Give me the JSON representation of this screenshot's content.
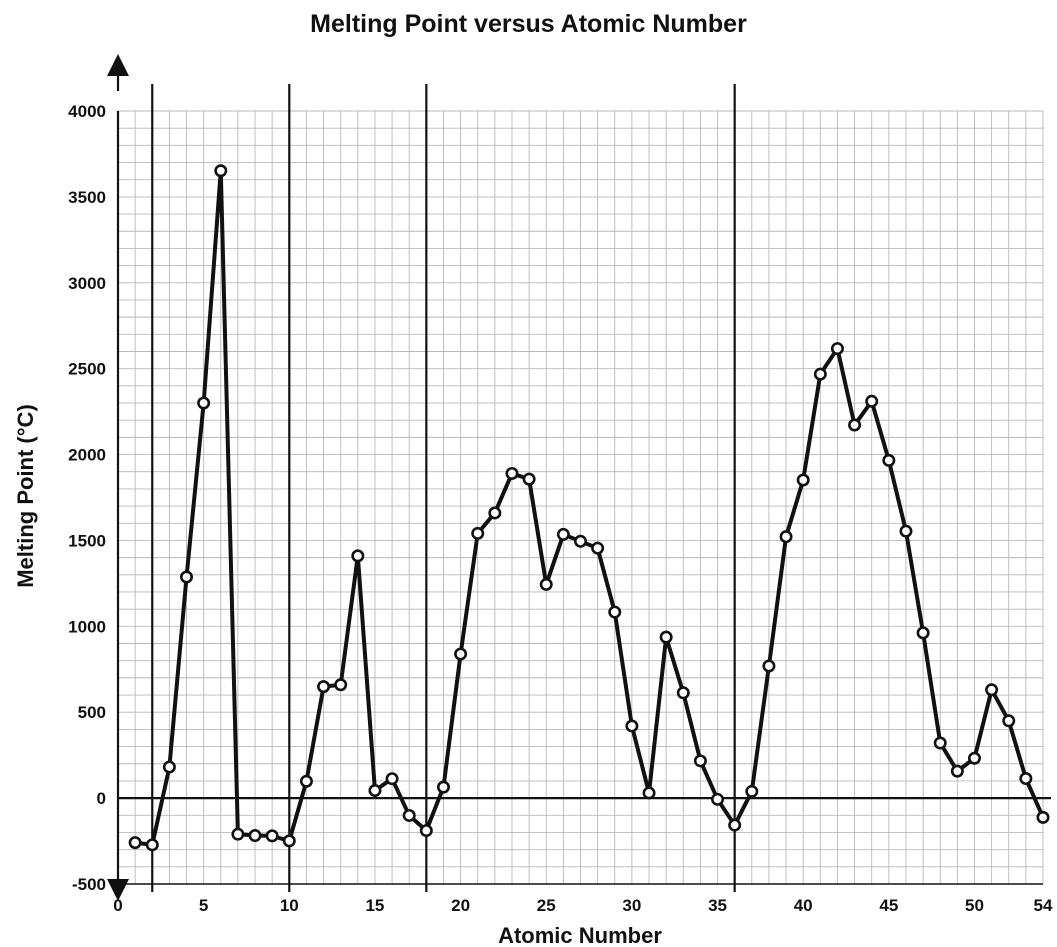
{
  "chart_data": {
    "type": "line",
    "title": "Melting Point versus Atomic Number",
    "xlabel": "Atomic Number",
    "ylabel": "Melting Point (°C)",
    "xlim": [
      0,
      54
    ],
    "ylim": [
      -500,
      4000
    ],
    "x_ticks": [
      0,
      5,
      10,
      15,
      20,
      25,
      30,
      35,
      40,
      45,
      50,
      54
    ],
    "y_ticks": [
      -500,
      0,
      500,
      1000,
      1500,
      2000,
      2500,
      3000,
      3500,
      4000
    ],
    "period_boundaries": [
      2,
      10,
      18,
      36
    ],
    "grid": true,
    "series": [
      {
        "x": [
          1,
          2,
          3,
          4,
          5,
          6,
          7,
          8,
          9,
          10,
          11,
          12,
          13,
          14,
          15,
          16,
          17,
          18,
          19,
          20,
          21,
          22,
          23,
          24,
          25,
          26,
          27,
          28,
          29,
          30,
          31,
          32,
          33,
          34,
          35,
          36,
          37,
          38,
          39,
          40,
          41,
          42,
          43,
          44,
          45,
          46,
          47,
          48,
          49,
          50,
          51,
          52,
          53,
          54
        ],
        "y": [
          -259,
          -272,
          181,
          1287,
          2300,
          3652,
          -210,
          -218,
          -220,
          -249,
          98,
          649,
          660,
          1410,
          44,
          113,
          -101,
          -189,
          64,
          839,
          1541,
          1660,
          1890,
          1857,
          1244,
          1535,
          1495,
          1455,
          1083,
          420,
          30,
          937,
          613,
          217,
          -7,
          -157,
          39,
          769,
          1522,
          1852,
          2468,
          2617,
          2172,
          2310,
          1966,
          1554,
          962,
          321,
          157,
          232,
          631,
          450,
          114,
          -112
        ]
      }
    ]
  }
}
